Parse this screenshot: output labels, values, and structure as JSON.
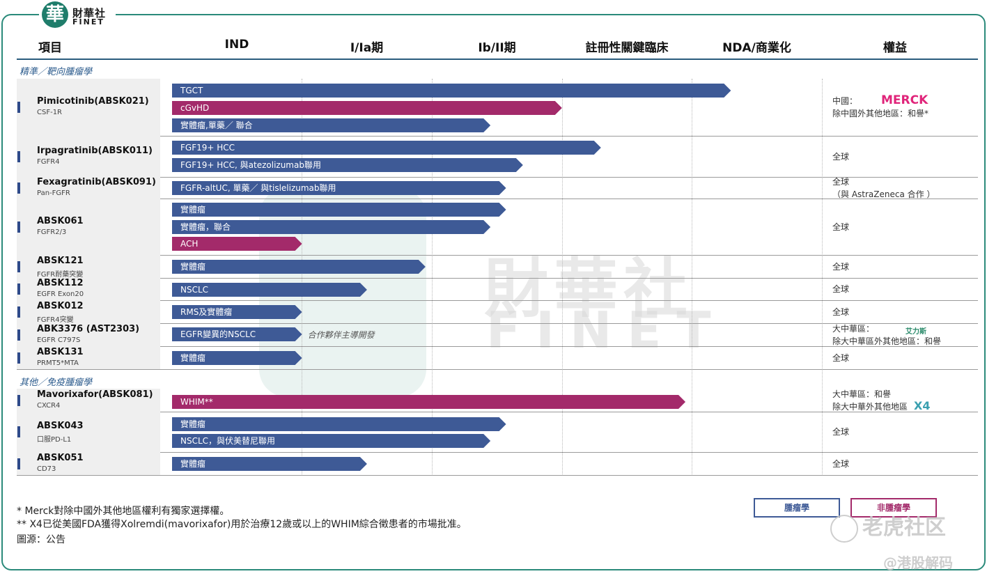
{
  "brand": {
    "logo_char": "華",
    "name_cn": "財華社",
    "name_en": "FINET"
  },
  "headers": [
    "項目",
    "IND",
    "I/Ia期",
    "Ib/II期",
    "註冊性關鍵臨床",
    "NDA/商業化",
    "權益"
  ],
  "sections": [
    "精準／靶向腫瘤學",
    "其他／免疫腫瘤學"
  ],
  "stages": [
    "IND",
    "I/Ia期",
    "Ib/II期",
    "註冊性關鍵臨床",
    "NDA/商業化"
  ],
  "chart_data": {
    "type": "bar",
    "orientation": "horizontal",
    "x_categories": [
      "IND",
      "I/Ia期",
      "Ib/II期",
      "註冊性關鍵臨床",
      "NDA/商業化"
    ],
    "colors": {
      "oncology": "#3e5a96",
      "non_oncology": "#a32a6a"
    },
    "drugs": [
      {
        "name": "Pimicotinib(ABSK021)",
        "target": "CSF-1R",
        "rights": [
          "中國：",
          "除中國外其他地區：和譽*"
        ],
        "partner_logo": "MERCK",
        "indications": [
          {
            "label": "TGCT",
            "progress": 4.3,
            "type": "oncology"
          },
          {
            "label": "cGvHD",
            "progress": 3.0,
            "type": "non_oncology"
          },
          {
            "label": "實體瘤,單藥／ 聯合",
            "progress": 2.45,
            "type": "oncology"
          }
        ]
      },
      {
        "name": "Irpagratinib(ABSK011)",
        "target": "FGFR4",
        "rights": [
          "全球"
        ],
        "indications": [
          {
            "label": "FGF19+ HCC",
            "progress": 3.3,
            "type": "oncology"
          },
          {
            "label": "FGF19+ HCC, 與atezolizumab聯用",
            "progress": 2.7,
            "type": "oncology"
          }
        ]
      },
      {
        "name": "Fexagratinib(ABSK091)",
        "target": "Pan-FGFR",
        "rights": [
          "全球",
          "（與 AstraZeneca 合作 ）"
        ],
        "partner_logo": "AstraZeneca",
        "indications": [
          {
            "label": "FGFR-altUC, 單藥／ 與tislelizumab聯用",
            "progress": 2.57,
            "type": "oncology"
          }
        ]
      },
      {
        "name": "ABSK061",
        "target": "FGFR2/3",
        "rights": [
          "全球"
        ],
        "indications": [
          {
            "label": "實體瘤",
            "progress": 2.57,
            "type": "oncology"
          },
          {
            "label": "實體瘤，聯合",
            "progress": 2.45,
            "type": "oncology"
          },
          {
            "label": "ACH",
            "progress": 1.0,
            "type": "non_oncology"
          }
        ]
      },
      {
        "name": "ABSK121",
        "target": "FGFR耐藥突變",
        "rights": [
          "全球"
        ],
        "indications": [
          {
            "label": "實體瘤",
            "progress": 1.95,
            "type": "oncology"
          }
        ]
      },
      {
        "name": "ABSK112",
        "target": "EGFR Exon20",
        "rights": [
          "全球"
        ],
        "indications": [
          {
            "label": "NSCLC",
            "progress": 1.5,
            "type": "oncology"
          }
        ]
      },
      {
        "name": "ABSK012",
        "target": "FGFR4突變",
        "rights": [
          "全球"
        ],
        "indications": [
          {
            "label": "RMS及實體瘤",
            "progress": 1.0,
            "type": "oncology"
          }
        ]
      },
      {
        "name": "ABK3376 (AST2303)",
        "target": "EGFR C797S",
        "rights": [
          "大中華區：",
          "除大中華區外其他地區：和譽"
        ],
        "partner_logo": "艾力斯",
        "indications": [
          {
            "label": "EGFR變異的NSCLC",
            "progress": 1.0,
            "type": "oncology",
            "note": "合作夥伴主導開發"
          }
        ]
      },
      {
        "name": "ABSK131",
        "target": "PRMT5*MTA",
        "rights": [
          "全球"
        ],
        "indications": [
          {
            "label": "實體瘤",
            "progress": 1.0,
            "type": "oncology"
          }
        ]
      },
      {
        "name": "Mavorixafor(ABSK081)",
        "target": "CXCR4",
        "rights": [
          "大中華區：和譽",
          "除大中華外其他地區"
        ],
        "partner_logo": "X4",
        "indications": [
          {
            "label": "WHIM**",
            "progress": 3.95,
            "type": "non_oncology"
          }
        ]
      },
      {
        "name": "ABSK043",
        "target": "口服PD-L1",
        "rights": [
          "全球"
        ],
        "indications": [
          {
            "label": "實體瘤",
            "progress": 2.57,
            "type": "oncology"
          },
          {
            "label": "NSCLC，與伏美替尼聯用",
            "progress": 2.45,
            "type": "oncology"
          }
        ]
      },
      {
        "name": "ABSK051",
        "target": "CD73",
        "rights": [
          "全球"
        ],
        "indications": [
          {
            "label": "實體瘤",
            "progress": 1.5,
            "type": "oncology"
          }
        ]
      }
    ],
    "legend": [
      {
        "label": "腫瘤學",
        "type": "oncology"
      },
      {
        "label": "非腫瘤學",
        "type": "non_oncology"
      }
    ]
  },
  "footnotes": [
    "*   Merck對除中國外其他地區權利有獨家選擇權。",
    "** X4已從美國FDA獲得Xolremdi(mavorixafor)用於治療12歲或以上的WHIM綜合徵患者的市場批准。",
    "圖源：公告"
  ],
  "watermarks": {
    "cn": "財華社",
    "en": "FINET",
    "corner": "老虎社区",
    "handle": "@港股解码"
  }
}
